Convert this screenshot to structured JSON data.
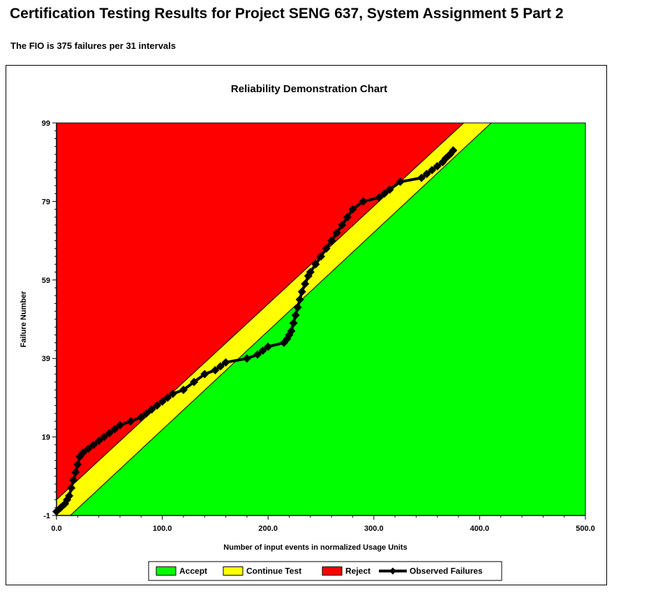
{
  "page": {
    "title": "Certification Testing Results for Project SENG 637, System Assignment 5 Part 2",
    "fio_text": "The FIO is 375 failures per 31 intervals"
  },
  "chart_data": {
    "type": "line",
    "title": "Reliability Demonstration Chart",
    "xlabel": "Number of input events in normalized Usage Units",
    "ylabel": "Failure Number",
    "xlim": [
      0,
      500
    ],
    "ylim": [
      -1,
      99
    ],
    "x_ticks": [
      0,
      100,
      200,
      300,
      400,
      500
    ],
    "x_tick_labels": [
      "0.0",
      "100.0",
      "200.0",
      "300.0",
      "400.0",
      "500.0"
    ],
    "y_ticks": [
      -1,
      19,
      39,
      59,
      79,
      99
    ],
    "y_tick_labels": [
      "-1",
      "19",
      "39",
      "59",
      "79",
      "99"
    ],
    "grid": false,
    "legend_position": "bottom",
    "regions": [
      {
        "name": "Accept",
        "color": "#00ff00"
      },
      {
        "name": "Continue Test",
        "color": "#ffff00"
      },
      {
        "name": "Reject",
        "color": "#ff0000"
      }
    ],
    "boundaries": {
      "reject_line": [
        [
          0,
          3
        ],
        [
          385,
          99
        ]
      ],
      "accept_line": [
        [
          13,
          -1
        ],
        [
          411,
          99
        ]
      ]
    },
    "series": [
      {
        "name": "Observed Failures",
        "color": "#000000",
        "x": [
          0,
          4,
          8,
          10,
          12,
          14,
          16,
          18,
          20,
          22,
          25,
          30,
          35,
          40,
          45,
          50,
          55,
          60,
          70,
          80,
          85,
          90,
          95,
          100,
          105,
          110,
          120,
          130,
          140,
          150,
          155,
          160,
          180,
          190,
          195,
          200,
          215,
          218,
          220,
          222,
          224,
          226,
          228,
          230,
          232,
          235,
          238,
          240,
          245,
          250,
          255,
          260,
          265,
          270,
          275,
          280,
          290,
          305,
          310,
          315,
          325,
          345,
          350,
          355,
          360,
          365,
          368,
          372,
          375
        ],
        "y": [
          0,
          1,
          2,
          3,
          4,
          6,
          8,
          10,
          12,
          14,
          15,
          16,
          17,
          18,
          19,
          20,
          21,
          22,
          23,
          24,
          25,
          26,
          27,
          28,
          29,
          30,
          31,
          33,
          35,
          36,
          37,
          38,
          39,
          40,
          41,
          42,
          43,
          44,
          45,
          46,
          48,
          50,
          52,
          54,
          56,
          58,
          60,
          61,
          63,
          65,
          67,
          69,
          71,
          73,
          75,
          77,
          79,
          80,
          81,
          82,
          84,
          85,
          86,
          87,
          88,
          89,
          90,
          91,
          92
        ]
      }
    ],
    "legend": [
      "Accept",
      "Continue Test",
      "Reject",
      "Observed Failures"
    ]
  }
}
